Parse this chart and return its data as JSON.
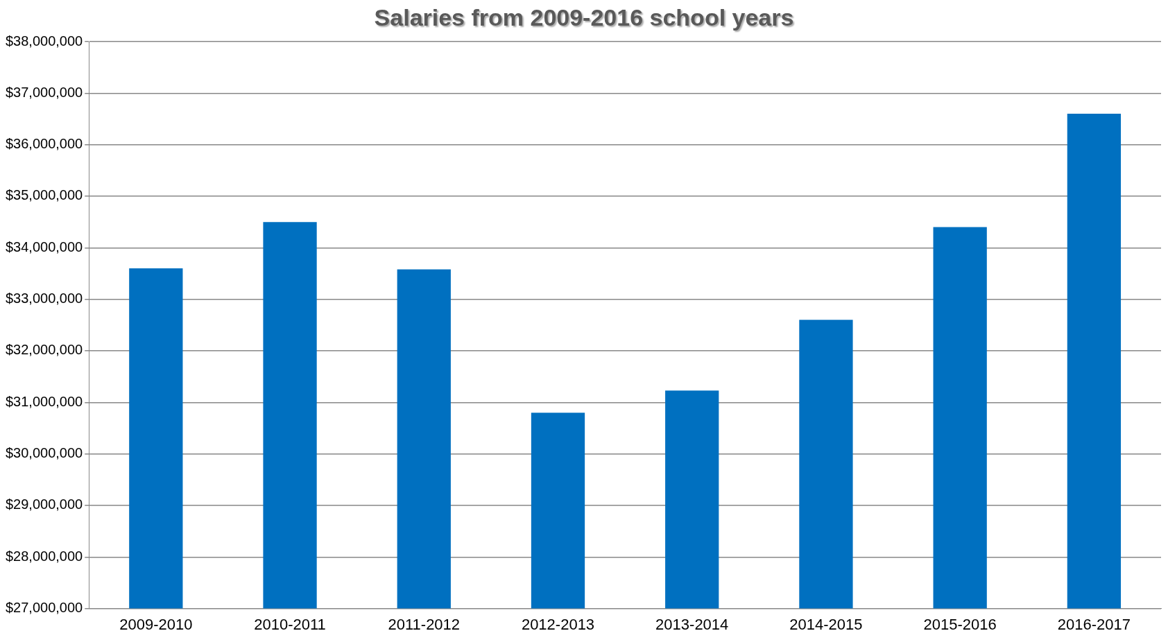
{
  "chart_data": {
    "type": "bar",
    "title": "Salaries from 2009-2016 school years",
    "categories": [
      "2009-2010",
      "2010-2011",
      "2011-2012",
      "2012-2013",
      "2013-2014",
      "2014-2015",
      "2015-2016",
      "2016-2017"
    ],
    "values": [
      33600000,
      34500000,
      33580000,
      30800000,
      31230000,
      32600000,
      34400000,
      36600000
    ],
    "color": "#0070c0",
    "ylim": [
      27000000,
      38000000
    ],
    "yticks": [
      {
        "value": 27000000,
        "label": "$27,000,000"
      },
      {
        "value": 28000000,
        "label": "$28,000,000"
      },
      {
        "value": 29000000,
        "label": "$29,000,000"
      },
      {
        "value": 30000000,
        "label": "$30,000,000"
      },
      {
        "value": 31000000,
        "label": "$31,000,000"
      },
      {
        "value": 32000000,
        "label": "$32,000,000"
      },
      {
        "value": 33000000,
        "label": "$33,000,000"
      },
      {
        "value": 34000000,
        "label": "$34,000,000"
      },
      {
        "value": 35000000,
        "label": "$35,000,000"
      },
      {
        "value": 36000000,
        "label": "$36,000,000"
      },
      {
        "value": 37000000,
        "label": "$37,000,000"
      },
      {
        "value": 38000000,
        "label": "$38,000,000"
      }
    ],
    "grid": "y",
    "legend": false
  }
}
